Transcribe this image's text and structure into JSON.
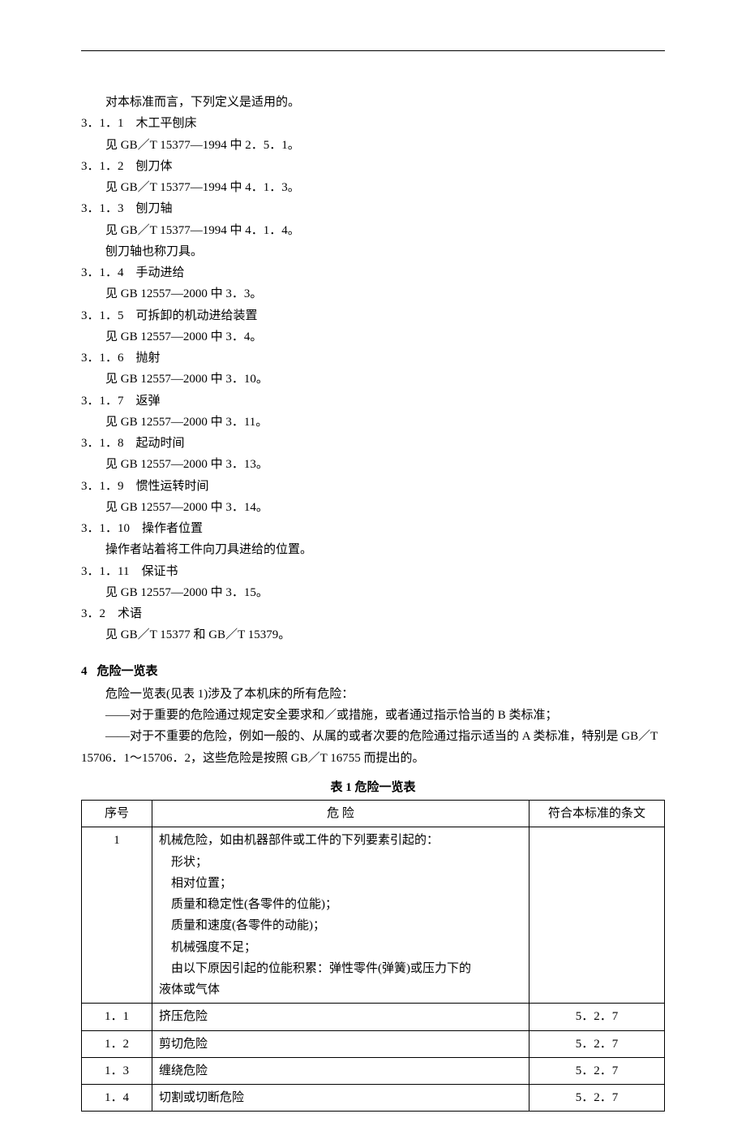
{
  "intro": "对本标准而言，下列定义是适用的。",
  "defs": [
    {
      "num": "3．1．1",
      "title": "木工平刨床",
      "ref": "见 GB／T 15377—1994 中 2．5．1。",
      "extra": ""
    },
    {
      "num": "3．1．2",
      "title": "刨刀体",
      "ref": "见 GB／T 15377—1994 中 4．1．3。",
      "extra": ""
    },
    {
      "num": "3．1．3",
      "title": "刨刀轴",
      "ref": "见 GB／T 15377—1994 中 4．1．4。",
      "extra": "刨刀轴也称刀具。"
    },
    {
      "num": "3．1．4",
      "title": "手动进给",
      "ref": "见 GB 12557—2000 中 3．3。",
      "extra": ""
    },
    {
      "num": "3．1．5",
      "title": "可拆卸的机动进给装置",
      "ref": "见 GB 12557—2000 中 3．4。",
      "extra": ""
    },
    {
      "num": "3．1．6",
      "title": "抛射",
      "ref": "见 GB 12557—2000 中 3．10。",
      "extra": ""
    },
    {
      "num": "3．1．7",
      "title": "返弹",
      "ref": "见 GB 12557—2000 中 3．11。",
      "extra": ""
    },
    {
      "num": "3．1．8",
      "title": "起动时间",
      "ref": "见 GB 12557—2000 中 3．13。",
      "extra": ""
    },
    {
      "num": "3．1．9",
      "title": "惯性运转时间",
      "ref": "见 GB 12557—2000 中 3．14。",
      "extra": ""
    },
    {
      "num": "3．1．10",
      "title": "操作者位置",
      "ref": "操作者站着将工件向刀具进给的位置。",
      "extra": ""
    },
    {
      "num": "3．1．11",
      "title": "保证书",
      "ref": "见 GB 12557—2000 中 3．15。",
      "extra": ""
    },
    {
      "num": "3．2",
      "title": "术语",
      "ref": "见 GB／T 15377 和 GB／T 15379。",
      "extra": ""
    }
  ],
  "section4": {
    "num": "4",
    "title": "危险一览表",
    "p1": "危险一览表(见表 1)涉及了本机床的所有危险：",
    "p2": "——对于重要的危险通过规定安全要求和／或措施，或者通过指示恰当的 B 类标准；",
    "p3": "——对于不重要的危险，例如一般的、从属的或者次要的危险通过指示适当的 A 类标准，特别是 GB／T 15706．1～15706．2，这些危险是按照 GB／T 16755 而提出的。"
  },
  "table": {
    "caption": "表 1    危险一览表",
    "headers": {
      "idx": "序号",
      "haz": "危        险",
      "ref": "符合本标准的条文"
    },
    "row1": {
      "idx": "1",
      "lines": [
        "机械危险，如由机器部件或工件的下列要素引起的：",
        "形状；",
        "相对位置；",
        "质量和稳定性(各零件的位能)；",
        "质量和速度(各零件的动能)；",
        "机械强度不足；",
        "由以下原因引起的位能积累：弹性零件(弹簧)或压力下的",
        "液体或气体"
      ],
      "ref": ""
    },
    "rows": [
      {
        "idx": "1．1",
        "haz": "挤压危险",
        "ref": "5．2．7"
      },
      {
        "idx": "1．2",
        "haz": "剪切危险",
        "ref": "5．2．7"
      },
      {
        "idx": "1．3",
        "haz": "缠绕危险",
        "ref": "5．2．7"
      },
      {
        "idx": "1．4",
        "haz": "切割或切断危险",
        "ref": "5．2．7"
      }
    ]
  }
}
